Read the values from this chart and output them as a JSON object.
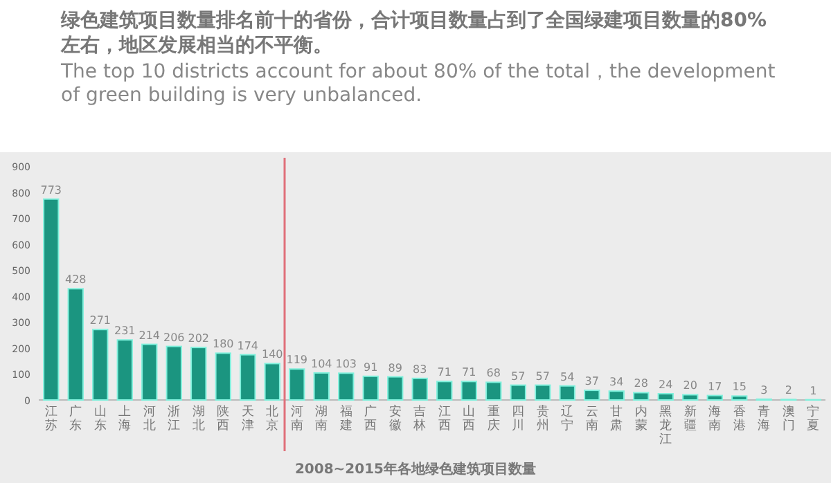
{
  "chart_data": {
    "type": "bar",
    "title": "绿色建筑项目数量排名前十的省份，合计项目数量占到了全国绿建项目数量的80%左右，地区发展相当的不平衡。",
    "subtitle": "The top 10 districts account for about 80% of the total，the development of green building is very unbalanced.",
    "xlabel": "2008~2015年各地绿色建筑项目数量",
    "categories": [
      "江苏",
      "广东",
      "山东",
      "上海",
      "河北",
      "浙江",
      "湖北",
      "陕西",
      "天津",
      "北京",
      "河南",
      "湖南",
      "福建",
      "广西",
      "安徽",
      "吉林",
      "江西",
      "山西",
      "重庆",
      "四川",
      "贵州",
      "辽宁",
      "云南",
      "甘肃",
      "内蒙",
      "黑龙江",
      "新疆",
      "海南",
      "香港",
      "青海",
      "澳门",
      "宁夏"
    ],
    "values": [
      773,
      428,
      271,
      231,
      214,
      206,
      202,
      180,
      174,
      140,
      119,
      104,
      103,
      91,
      89,
      83,
      71,
      71,
      68,
      57,
      57,
      54,
      37,
      34,
      28,
      24,
      20,
      17,
      15,
      3,
      2,
      1
    ],
    "color": "#1b9580",
    "ylim": [
      0,
      900
    ],
    "yticks": [
      0,
      100,
      200,
      300,
      400,
      500,
      600,
      700,
      800,
      900
    ],
    "data_labels": true,
    "ref_lines": [
      {
        "axis": "x",
        "value": "河南",
        "color": "#e0707a"
      }
    ]
  }
}
